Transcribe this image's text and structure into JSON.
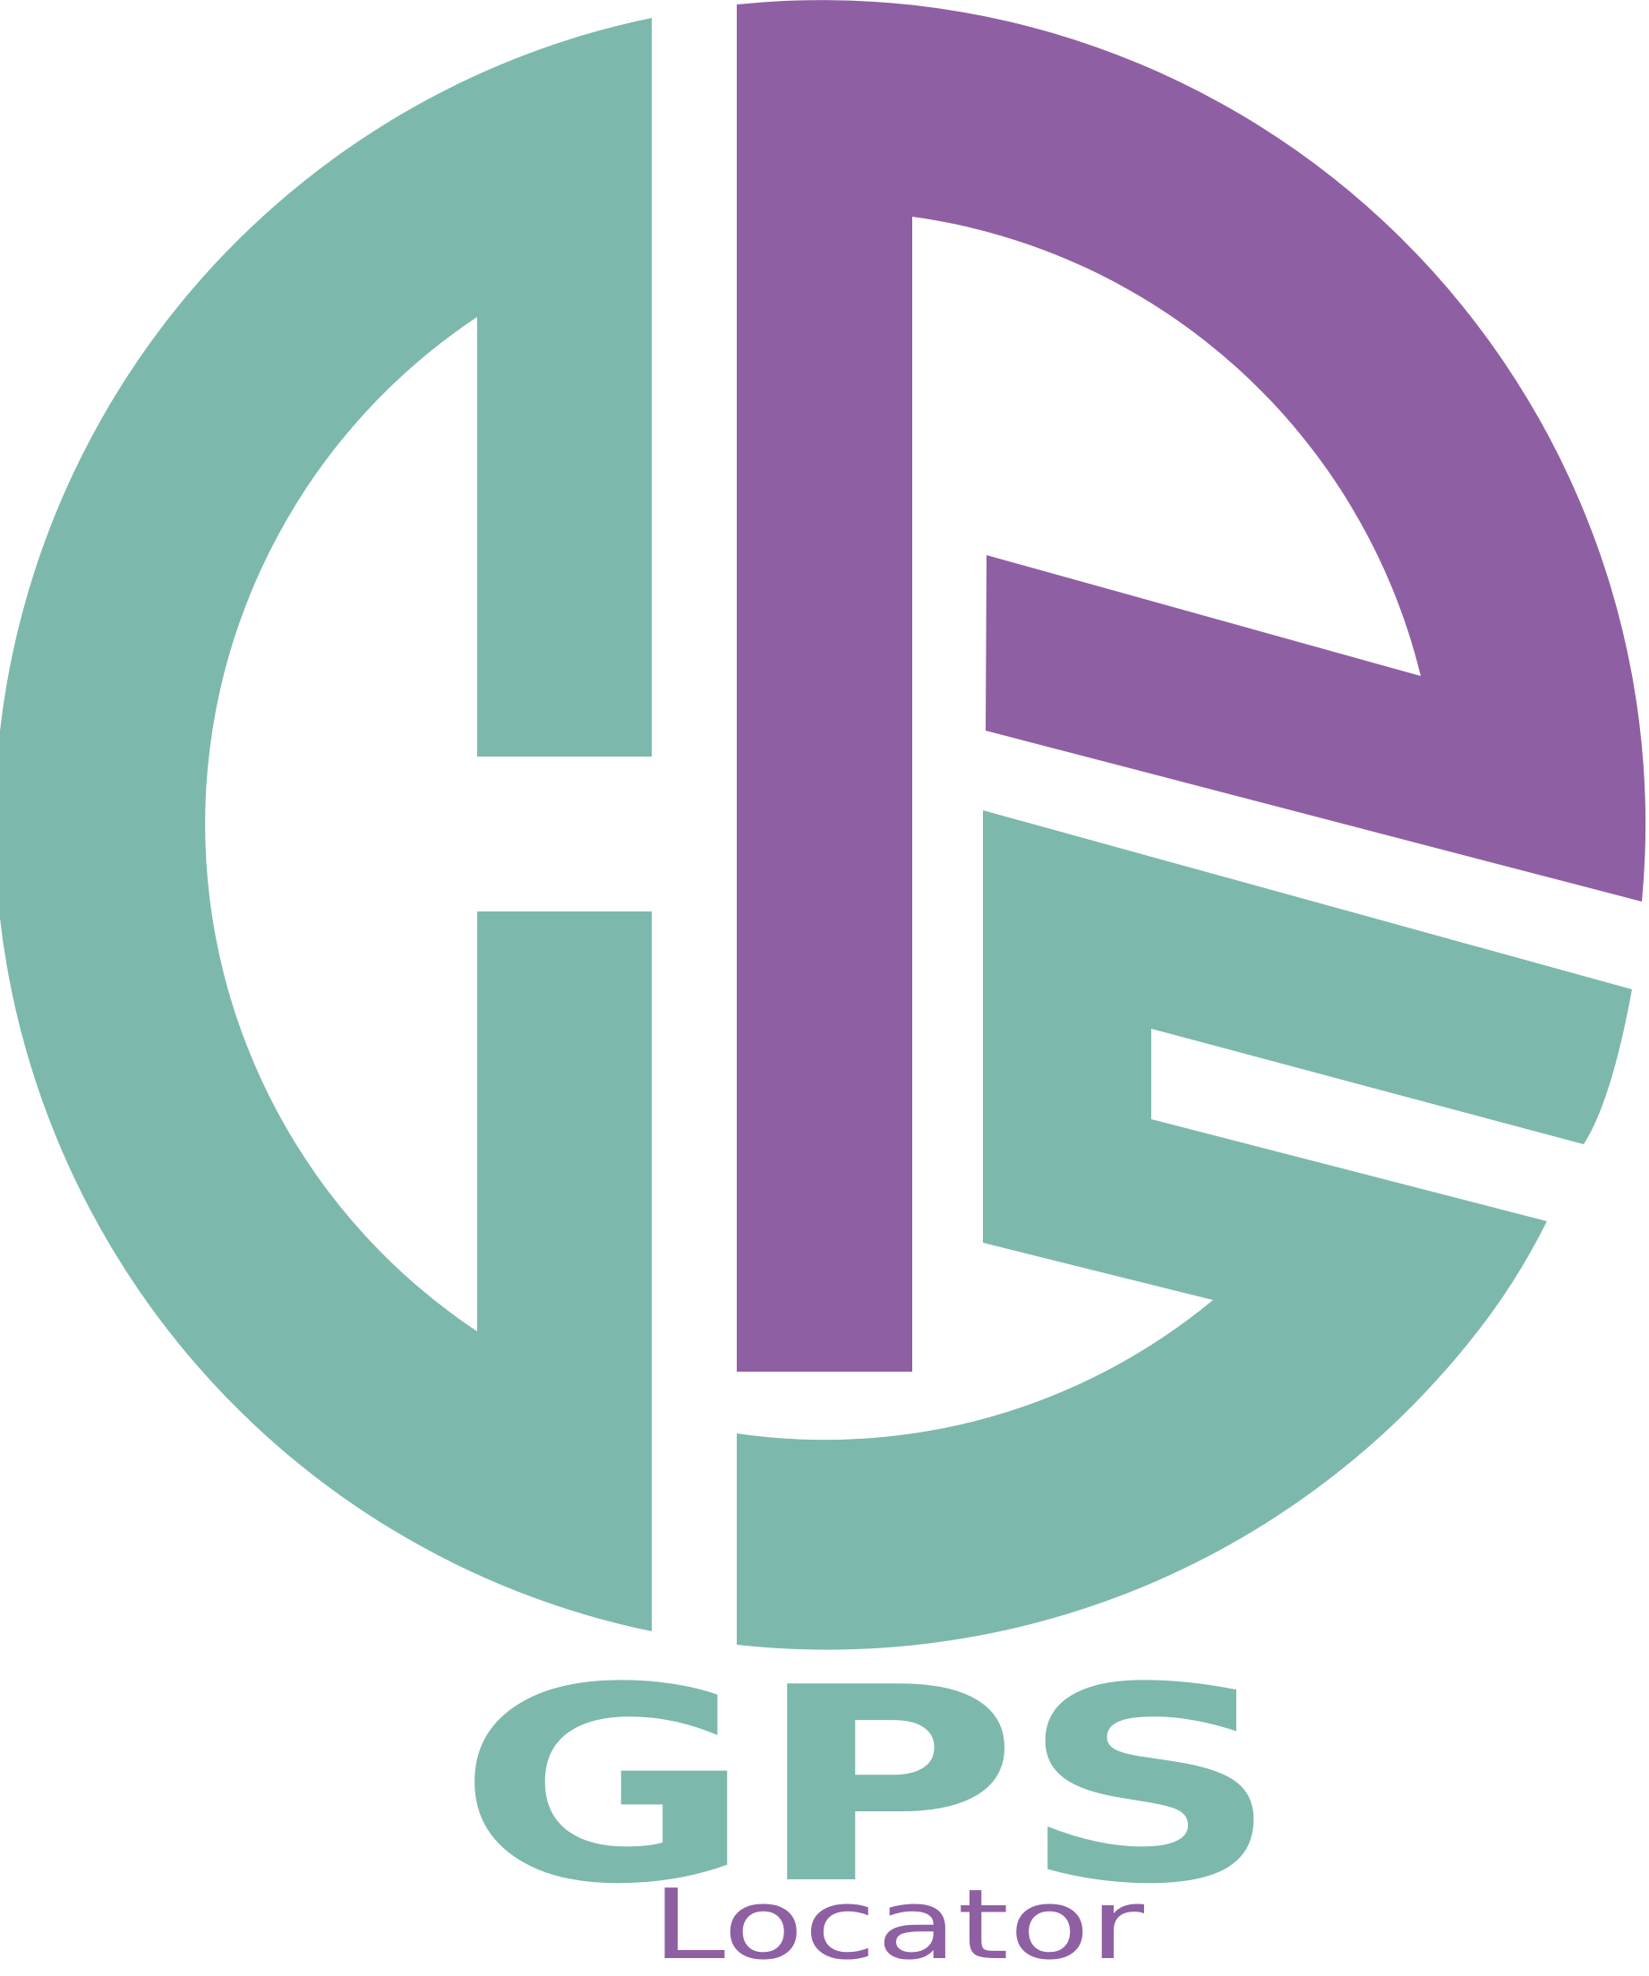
{
  "logo": {
    "wordmark": "GPS",
    "tagline": "Locator",
    "colors": {
      "teal": "#7db8ad",
      "purple": "#8f5fa3",
      "background": "#ffffff"
    },
    "emblem_icon": "gps-circle-monogram-icon"
  }
}
